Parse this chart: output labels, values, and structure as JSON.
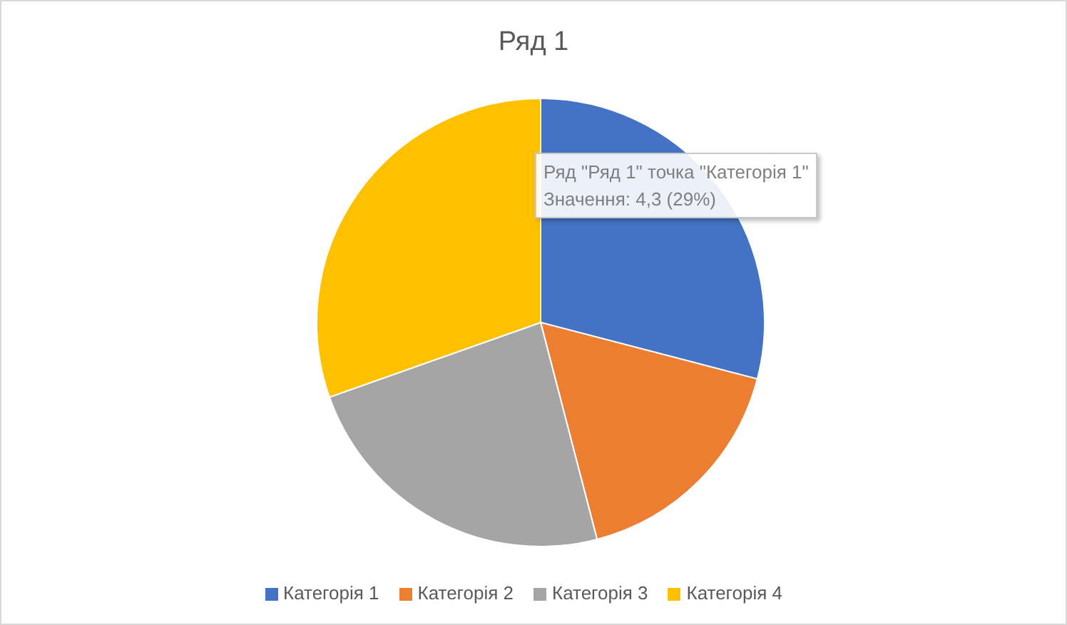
{
  "chart_data": {
    "type": "pie",
    "title": "Ряд 1",
    "categories": [
      "Категорія 1",
      "Категорія 2",
      "Категорія 3",
      "Категорія 4"
    ],
    "values": [
      4.3,
      2.5,
      3.5,
      4.5
    ],
    "colors": [
      "#4472c4",
      "#ed7d31",
      "#a5a5a5",
      "#ffc000"
    ],
    "legend": "bottom",
    "annotations": [
      "Ряд \"Ряд 1\" точка \"Категорія 1\"",
      "Значення: 4,3 (29%)"
    ]
  }
}
